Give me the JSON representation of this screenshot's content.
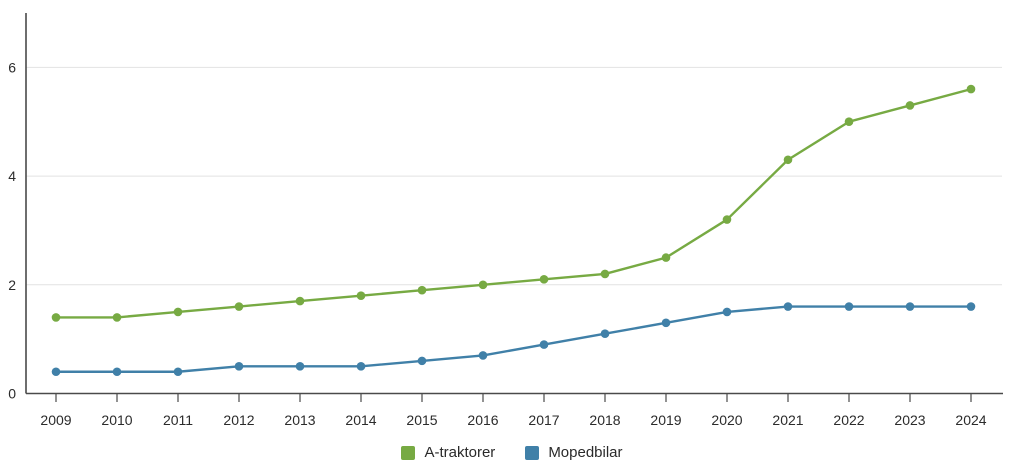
{
  "chart_data": {
    "type": "line",
    "title": "",
    "xlabel": "",
    "ylabel": "",
    "categories": [
      "2009",
      "2010",
      "2011",
      "2012",
      "2013",
      "2014",
      "2015",
      "2016",
      "2017",
      "2018",
      "2019",
      "2020",
      "2021",
      "2022",
      "2023",
      "2024"
    ],
    "series": [
      {
        "name": "A-traktorer",
        "color": "#77aa43",
        "values": [
          1.4,
          1.4,
          1.5,
          1.6,
          1.7,
          1.8,
          1.9,
          2.0,
          2.1,
          2.2,
          2.5,
          3.2,
          4.3,
          5.0,
          5.3,
          5.6
        ]
      },
      {
        "name": "Mopedbilar",
        "color": "#4080a8",
        "values": [
          0.4,
          0.4,
          0.4,
          0.5,
          0.5,
          0.5,
          0.6,
          0.7,
          0.9,
          1.1,
          1.3,
          1.5,
          1.6,
          1.6,
          1.6,
          1.6
        ]
      }
    ],
    "ylim": [
      0,
      7
    ],
    "yticks": [
      0,
      2,
      4,
      6
    ],
    "grid": true,
    "legend_position": "bottom"
  },
  "colors": {
    "axis": "#4a4a4a",
    "grid": "#e2e2e2",
    "text": "#2b2b2b",
    "background": "#ffffff"
  }
}
